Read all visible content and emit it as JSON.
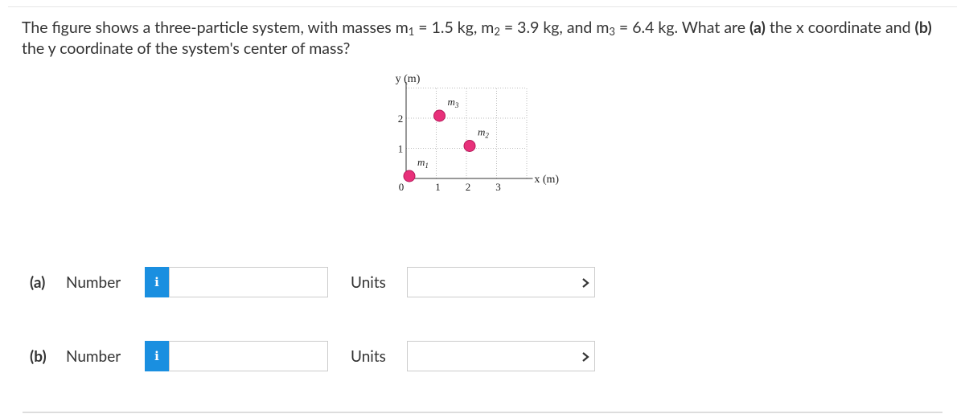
{
  "question": {
    "parts": [
      "The figure shows a three-particle system, with masses m",
      "1",
      " = 1.5 kg, m",
      "2",
      " = 3.9 kg, and m",
      "3",
      " = 6.4 kg. What are ",
      "(a)",
      " the x coordinate and ",
      "(b)",
      " the y coordinate of the system's center of mass?"
    ]
  },
  "figure": {
    "y_axis_label": "y (m)",
    "x_axis_label": "x (m)",
    "x_ticks": [
      "0",
      "1",
      "2",
      "3"
    ],
    "y_ticks": [
      "1",
      "2"
    ],
    "particles": [
      {
        "label": "m",
        "sub": "1",
        "x": 0,
        "y": 0
      },
      {
        "label": "m",
        "sub": "2",
        "x": 2,
        "y": 1
      },
      {
        "label": "m",
        "sub": "3",
        "x": 1,
        "y": 2
      }
    ]
  },
  "answers": [
    {
      "part": "(a)",
      "field": "Number",
      "info": "i",
      "units": "Units"
    },
    {
      "part": "(b)",
      "field": "Number",
      "info": "i",
      "units": "Units"
    }
  ]
}
